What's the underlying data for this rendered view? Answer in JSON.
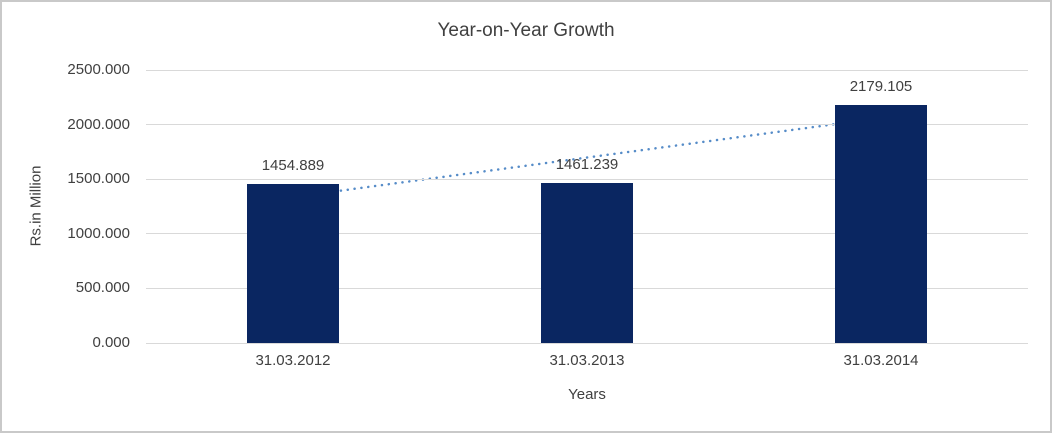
{
  "chart_data": {
    "type": "bar",
    "title": "Year-on-Year Growth",
    "categories": [
      "31.03.2012",
      "31.03.2013",
      "31.03.2014"
    ],
    "values": [
      1454.889,
      1461.239,
      2179.105
    ],
    "value_decimals": 3,
    "xlabel": "Years",
    "ylabel": "Rs.in Million",
    "ylim": [
      0,
      2500
    ],
    "ytick_step": 500,
    "ytick_labels": [
      "0.000",
      "500.000",
      "1000.000",
      "1500.000",
      "2000.000",
      "2500.000"
    ],
    "grid": true,
    "legend": "none",
    "trendline": {
      "type": "linear",
      "style": "dotted"
    },
    "colors": {
      "bar": "#0a2661",
      "trendline": "#568cc8",
      "gridline": "#d9d9d9",
      "text": "#404040",
      "background": "#ffffff",
      "border": "#c9c9c9"
    }
  }
}
